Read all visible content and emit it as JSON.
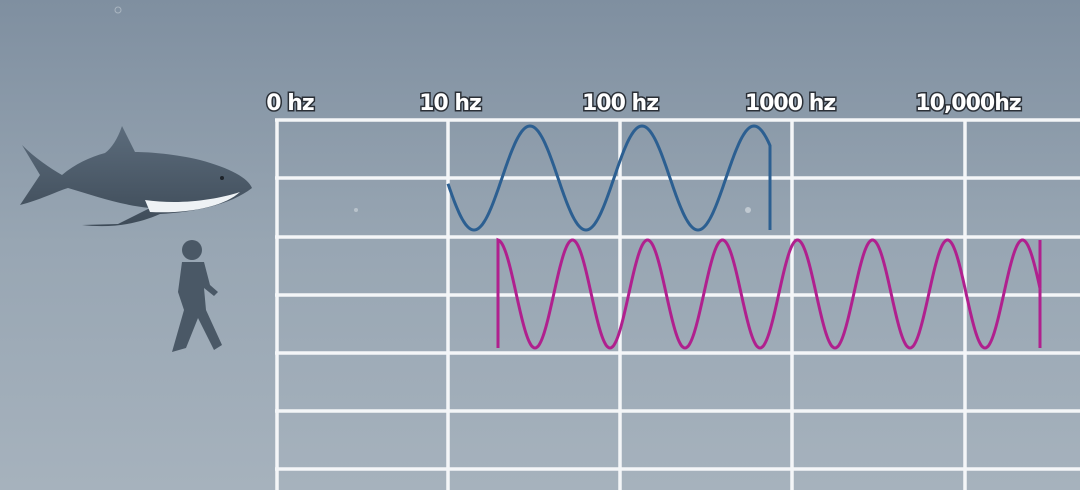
{
  "axis_labels": [
    "0 hz",
    "10 hz",
    "100 hz",
    "1000 hz",
    "10,000hz"
  ]
}
